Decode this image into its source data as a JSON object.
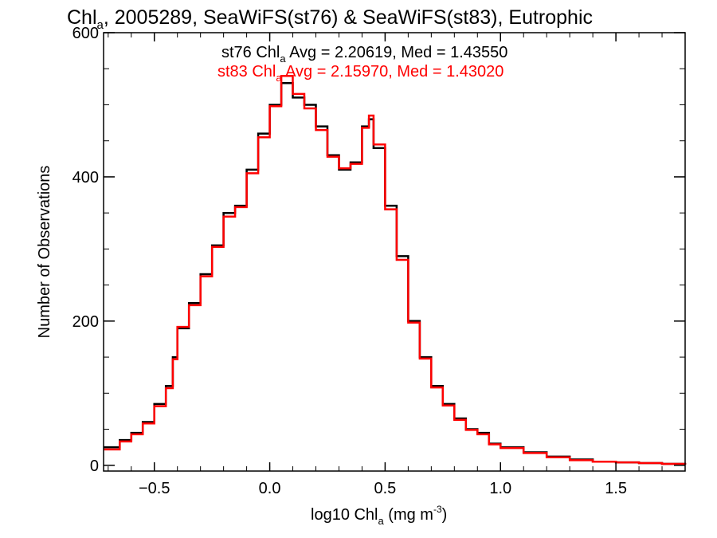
{
  "chart_data": {
    "type": "line",
    "title_main": "Chl",
    "title_sub": "a",
    "title_rest": ", 2005289, SeaWiFS(st76) & SeaWiFS(st83), Eutrophic",
    "xlabel_pre": "log10 Chl",
    "xlabel_sub": "a",
    "xlabel_mid": " (mg m",
    "xlabel_sup": "-3",
    "xlabel_post": ")",
    "ylabel": "Number of Observations",
    "xlim": [
      -0.72,
      1.8
    ],
    "ylim": [
      -8,
      600
    ],
    "xticks": [
      -0.5,
      0.0,
      0.5,
      1.0,
      1.5
    ],
    "xtick_labels": [
      "−0.5",
      "0.0",
      "0.5",
      "1.0",
      "1.5"
    ],
    "yticks": [
      0,
      200,
      400,
      600
    ],
    "ytick_labels": [
      "0",
      "200",
      "400",
      "600"
    ],
    "x": [
      -0.72,
      -0.65,
      -0.6,
      -0.55,
      -0.5,
      -0.45,
      -0.42,
      -0.4,
      -0.35,
      -0.3,
      -0.25,
      -0.2,
      -0.15,
      -0.1,
      -0.05,
      0.0,
      0.05,
      0.1,
      0.15,
      0.2,
      0.25,
      0.3,
      0.35,
      0.4,
      0.43,
      0.45,
      0.5,
      0.55,
      0.6,
      0.65,
      0.7,
      0.75,
      0.8,
      0.85,
      0.9,
      0.95,
      1.0,
      1.1,
      1.2,
      1.3,
      1.4,
      1.5,
      1.6,
      1.7,
      1.8
    ],
    "series": [
      {
        "name": "st76",
        "color": "#000000",
        "label_pre": "st76 Chl",
        "label_sub": "a",
        "label_post": " Avg = 2.20619, Med = 1.43550",
        "values": [
          25,
          35,
          45,
          60,
          85,
          110,
          150,
          190,
          225,
          265,
          305,
          350,
          360,
          410,
          460,
          500,
          530,
          510,
          500,
          470,
          430,
          410,
          420,
          470,
          480,
          440,
          360,
          290,
          200,
          150,
          110,
          85,
          65,
          50,
          45,
          30,
          25,
          18,
          12,
          8,
          5,
          4,
          3,
          2,
          1
        ]
      },
      {
        "name": "st83",
        "color": "#ff0000",
        "label_pre": "st83 Chl",
        "label_sub": "a",
        "label_post": " Avg = 2.15970, Med = 1.43020",
        "values": [
          22,
          33,
          43,
          58,
          82,
          107,
          147,
          192,
          222,
          262,
          303,
          345,
          358,
          405,
          455,
          498,
          540,
          515,
          495,
          465,
          428,
          412,
          418,
          468,
          485,
          445,
          355,
          285,
          198,
          148,
          108,
          83,
          63,
          49,
          43,
          29,
          24,
          17,
          11,
          7,
          5,
          4,
          3,
          2,
          1
        ]
      }
    ],
    "grid": false
  }
}
